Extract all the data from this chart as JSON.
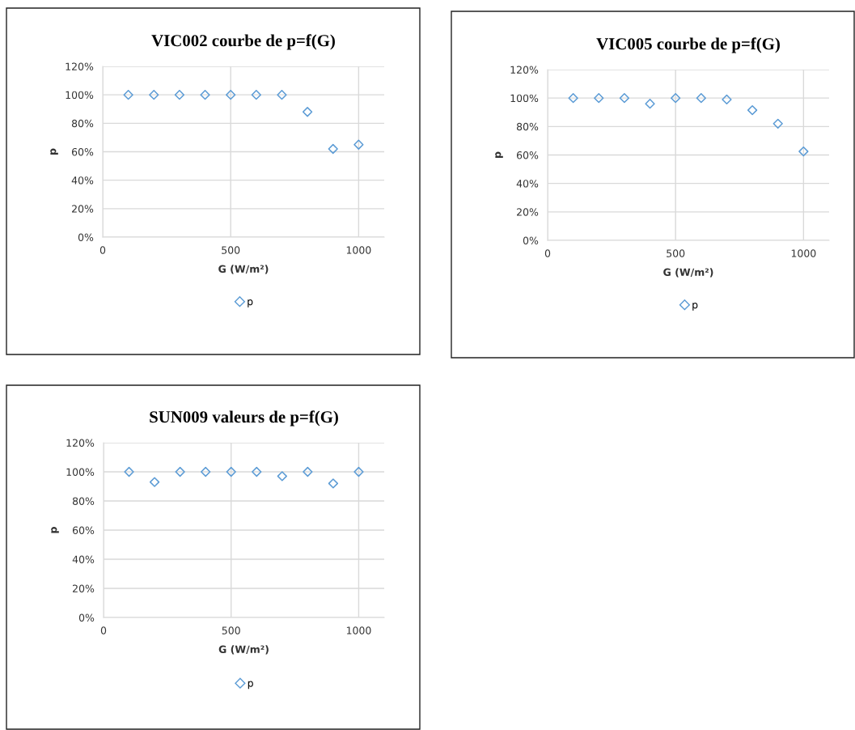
{
  "chart_data": [
    {
      "type": "scatter",
      "title": "VIC002 courbe de p=f(G)",
      "xlabel": "G (W/m²)",
      "ylabel": "p",
      "xlim": [
        0,
        1100
      ],
      "xticks": [
        0,
        500,
        1000
      ],
      "ylim": [
        0,
        120
      ],
      "yticks": [
        {
          "value": 0,
          "label": "0%"
        },
        {
          "value": 20,
          "label": "20%"
        },
        {
          "value": 40,
          "label": "40%"
        },
        {
          "value": 60,
          "label": "60%"
        },
        {
          "value": 80,
          "label": "80%"
        },
        {
          "value": 100,
          "label": "100%"
        },
        {
          "value": 120,
          "label": "120%"
        }
      ],
      "grid": true,
      "legend": "bottom",
      "marker": "diamond",
      "x": [
        100,
        200,
        300,
        400,
        500,
        600,
        700,
        800,
        900,
        1000
      ],
      "series": [
        {
          "name": "p",
          "color": "#5b9bd5",
          "values": [
            100,
            100,
            100,
            100,
            100,
            100,
            100,
            88,
            62,
            65
          ]
        }
      ]
    },
    {
      "type": "scatter",
      "title": "VIC005 courbe de p=f(G)",
      "xlabel": "G (W/m²)",
      "ylabel": "p",
      "xlim": [
        0,
        1100
      ],
      "xticks": [
        0,
        500,
        1000
      ],
      "ylim": [
        0,
        120
      ],
      "yticks": [
        {
          "value": 0,
          "label": "0%"
        },
        {
          "value": 20,
          "label": "20%"
        },
        {
          "value": 40,
          "label": "40%"
        },
        {
          "value": 60,
          "label": "60%"
        },
        {
          "value": 80,
          "label": "80%"
        },
        {
          "value": 100,
          "label": "100%"
        },
        {
          "value": 120,
          "label": "120%"
        }
      ],
      "grid": true,
      "legend": "bottom",
      "marker": "diamond",
      "x": [
        100,
        200,
        300,
        400,
        500,
        600,
        700,
        800,
        900,
        1000
      ],
      "series": [
        {
          "name": "p",
          "color": "#5b9bd5",
          "values": [
            100,
            100,
            100,
            96,
            100,
            100,
            99,
            91.5,
            82,
            62.5
          ]
        }
      ]
    },
    {
      "type": "scatter",
      "title": "SUN009 valeurs de p=f(G)",
      "xlabel": "G (W/m²)",
      "ylabel": "p",
      "xlim": [
        0,
        1100
      ],
      "xticks": [
        0,
        500,
        1000
      ],
      "ylim": [
        0,
        120
      ],
      "yticks": [
        {
          "value": 0,
          "label": "0%"
        },
        {
          "value": 20,
          "label": "20%"
        },
        {
          "value": 40,
          "label": "40%"
        },
        {
          "value": 60,
          "label": "60%"
        },
        {
          "value": 80,
          "label": "80%"
        },
        {
          "value": 100,
          "label": "100%"
        },
        {
          "value": 120,
          "label": "120%"
        }
      ],
      "grid": true,
      "legend": "bottom",
      "marker": "diamond",
      "x": [
        100,
        200,
        300,
        400,
        500,
        600,
        700,
        800,
        900,
        1000
      ],
      "series": [
        {
          "name": "p",
          "color": "#5b9bd5",
          "values": [
            100,
            93,
            100,
            100,
            100,
            100,
            97,
            100,
            92,
            100
          ]
        }
      ]
    }
  ]
}
